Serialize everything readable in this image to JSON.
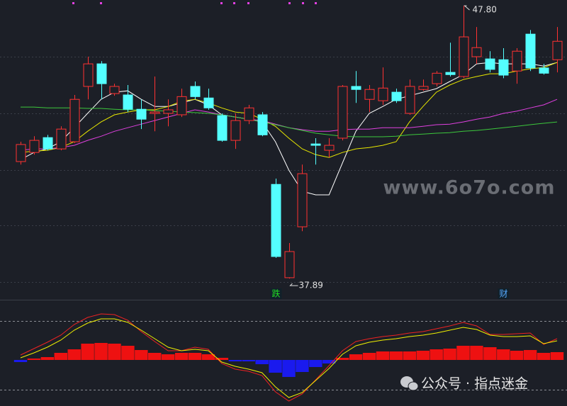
{
  "chart_data": [
    {
      "type": "candlestick",
      "ylim": [
        37.12,
        48.01
      ],
      "gridlines": [
        45.95,
        43.89,
        41.83,
        39.82,
        37.76
      ],
      "up_color": "#ff3232",
      "down_color": "#54ffff",
      "open": [
        42.14,
        42.47,
        43.01,
        42.6,
        42.86,
        44.87,
        45.69,
        44.61,
        44.56,
        44.04,
        43.89,
        43.89,
        43.84,
        44.87,
        44.45,
        43.81,
        42.91,
        43.63,
        43.84,
        41.31,
        37.92,
        39.77,
        42.78,
        42.55,
        42.99,
        44.87,
        44.4,
        44.35,
        44.66,
        43.89,
        44.76,
        44.97,
        45.38,
        45.23,
        45.95,
        45.87,
        45.84,
        45.43,
        46.77,
        45.54,
        45.84
      ],
      "high": [
        42.86,
        43.06,
        43.11,
        43.42,
        44.56,
        45.95,
        45.79,
        44.97,
        44.92,
        44.4,
        45.23,
        44.4,
        44.79,
        45.05,
        44.79,
        43.89,
        43.89,
        44.2,
        43.94,
        41.52,
        39.18,
        42.03,
        42.99,
        42.99,
        44.92,
        45.43,
        44.92,
        45.56,
        44.79,
        45.12,
        45.12,
        45.43,
        46.46,
        47.8,
        47.03,
        46.15,
        46.26,
        46.26,
        46.92,
        45.69,
        47.03
      ],
      "low": [
        42.03,
        42.39,
        42.55,
        42.55,
        42.81,
        44.4,
        44.4,
        44.53,
        43.94,
        43.32,
        43.24,
        43.42,
        43.76,
        44.4,
        44.02,
        42.86,
        42.6,
        43.5,
        43.06,
        38.64,
        37.89,
        39.61,
        42.03,
        42.29,
        42.91,
        44.27,
        43.94,
        44.2,
        44.27,
        43.84,
        44.71,
        44.87,
        45.23,
        45.17,
        45.69,
        45.38,
        45.17,
        44.97,
        45.43,
        45.3,
        45.38
      ],
      "close": [
        42.76,
        42.91,
        42.6,
        43.32,
        44.4,
        45.69,
        44.97,
        44.87,
        44.04,
        43.68,
        43.94,
        44.02,
        44.5,
        44.5,
        44.09,
        42.91,
        43.63,
        44.09,
        43.11,
        38.69,
        38.87,
        41.7,
        42.73,
        42.73,
        44.87,
        44.76,
        44.76,
        44.81,
        44.35,
        44.87,
        44.87,
        45.35,
        45.3,
        46.67,
        46.28,
        45.49,
        45.28,
        46.15,
        45.54,
        45.35,
        46.51
      ],
      "series": [
        {
          "color": "#ffffff",
          "values": [
            42.21,
            42.47,
            42.6,
            42.86,
            43.37,
            43.89,
            44.4,
            44.66,
            44.71,
            44.4,
            44.14,
            44.14,
            44.27,
            44.4,
            44.2,
            43.84,
            43.76,
            43.68,
            43.58,
            42.86,
            41.83,
            41.06,
            40.93,
            40.93,
            42.09,
            43.24,
            43.89,
            44.14,
            44.4,
            44.53,
            44.66,
            44.79,
            45.05,
            45.3,
            45.69,
            45.74,
            45.69,
            45.69,
            45.69,
            45.61,
            45.74
          ]
        },
        {
          "color": "#e8e800",
          "values": [
            42.47,
            42.52,
            42.55,
            42.65,
            42.86,
            43.24,
            43.58,
            43.84,
            43.94,
            44.02,
            44.02,
            44.14,
            44.33,
            44.4,
            44.27,
            44.09,
            43.94,
            43.89,
            43.68,
            43.42,
            42.99,
            42.6,
            42.39,
            42.29,
            42.47,
            42.6,
            42.65,
            42.73,
            42.86,
            43.58,
            44.14,
            44.66,
            44.92,
            45.12,
            45.23,
            45.33,
            45.33,
            45.43,
            45.51,
            45.56,
            45.74
          ]
        },
        {
          "color": "#e040e0",
          "values": [
            42.55,
            42.6,
            42.6,
            42.65,
            42.73,
            42.91,
            43.06,
            43.24,
            43.37,
            43.5,
            43.63,
            43.76,
            43.89,
            44.02,
            43.94,
            43.84,
            43.76,
            43.68,
            43.63,
            43.5,
            43.37,
            43.3,
            43.24,
            43.24,
            43.3,
            43.32,
            43.32,
            43.37,
            43.37,
            43.37,
            43.42,
            43.48,
            43.5,
            43.58,
            43.68,
            43.76,
            43.89,
            43.97,
            44.09,
            44.2,
            44.4
          ]
        },
        {
          "color": "#3cc83c",
          "values": [
            44.12,
            44.12,
            44.09,
            44.09,
            44.09,
            44.07,
            44.07,
            44.04,
            44.02,
            44.02,
            43.99,
            43.97,
            43.94,
            43.92,
            43.89,
            43.84,
            43.76,
            43.68,
            43.58,
            43.48,
            43.37,
            43.27,
            43.17,
            43.11,
            43.06,
            43.04,
            43.04,
            43.04,
            43.06,
            43.11,
            43.14,
            43.17,
            43.19,
            43.24,
            43.27,
            43.32,
            43.37,
            43.42,
            43.48,
            43.53,
            43.58
          ]
        }
      ],
      "annotations": [
        {
          "value": 47.8,
          "label": "47.80"
        },
        {
          "value": 37.89,
          "label": "37.89"
        }
      ],
      "signals": [
        null,
        null,
        null,
        null,
        null,
        null,
        null,
        null,
        null,
        null,
        null,
        null,
        null,
        null,
        null,
        null,
        null,
        null,
        null,
        {
          "text": "跌",
          "color": "#22dd22"
        },
        null,
        null,
        null,
        null,
        null,
        null,
        null,
        null,
        null,
        null,
        null,
        null,
        null,
        null,
        null,
        null,
        {
          "text": "财",
          "color": "#55aaff"
        },
        null,
        null,
        null,
        null
      ]
    },
    {
      "type": "macd",
      "ylim": [
        -6.5,
        8.4
      ],
      "ref_lines": [
        5.5,
        -4.2
      ],
      "histogram": {
        "up_color": "#ee1111",
        "down_color": "#1a1aee",
        "values": [
          -0.3,
          0.2,
          0.4,
          1.0,
          1.5,
          2.3,
          2.4,
          2.3,
          2.0,
          1.4,
          1.0,
          0.8,
          1.0,
          1.0,
          0.8,
          0.3,
          -0.2,
          -0.2,
          -0.6,
          -1.8,
          -2.4,
          -1.7,
          -1.0,
          -0.5,
          0.3,
          0.8,
          1.0,
          1.2,
          1.2,
          1.2,
          1.3,
          1.5,
          1.6,
          2.0,
          2.0,
          1.8,
          1.5,
          1.3,
          1.4,
          1.0,
          1.1
        ]
      },
      "series": [
        {
          "color": "#ee2222",
          "values": [
            0.7,
            1.6,
            2.5,
            3.5,
            5.0,
            6.0,
            6.5,
            6.4,
            5.6,
            4.0,
            2.6,
            1.3,
            1.3,
            1.8,
            1.5,
            -0.5,
            -1.3,
            -1.6,
            -2.2,
            -4.5,
            -5.8,
            -4.8,
            -2.8,
            -0.8,
            1.3,
            2.6,
            3.0,
            3.3,
            3.5,
            3.8,
            4.0,
            4.4,
            4.8,
            5.3,
            4.8,
            3.6,
            3.6,
            3.7,
            3.8,
            2.2,
            3.0
          ]
        },
        {
          "color": "#f0f000",
          "values": [
            0.3,
            1.0,
            1.8,
            2.8,
            4.2,
            5.2,
            5.8,
            5.8,
            5.3,
            4.2,
            3.0,
            1.8,
            1.3,
            1.5,
            1.3,
            -0.3,
            -0.9,
            -1.3,
            -1.8,
            -3.8,
            -5.3,
            -4.6,
            -2.9,
            -1.2,
            0.8,
            2.0,
            2.5,
            2.8,
            3.0,
            3.3,
            3.5,
            3.8,
            4.2,
            4.6,
            4.3,
            3.5,
            3.3,
            3.3,
            3.4,
            2.3,
            2.7
          ]
        }
      ]
    }
  ],
  "watermark": "www.6o7o.com",
  "caption": "公众号 · 指点迷金"
}
